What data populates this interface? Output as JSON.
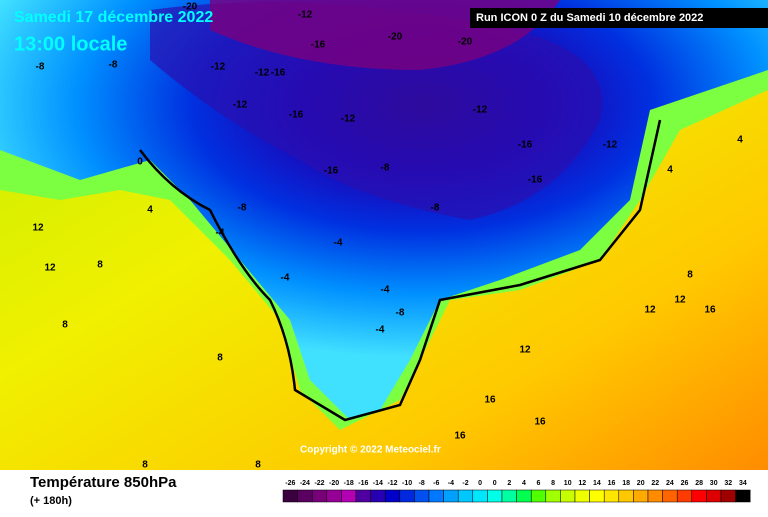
{
  "header": {
    "date": "Samedi 17 décembre 2022",
    "time": "13:00 locale",
    "run": "Run ICON 0 Z du Samedi 10 décembre 2022"
  },
  "copyright": "Copyright © 2022 Meteociel.fr",
  "footer": {
    "title": "Température 850hPa",
    "lead": "(+ 180h)"
  },
  "scale": {
    "labels": [
      "-26",
      "-24",
      "-22",
      "-20",
      "-18",
      "-16",
      "-14",
      "-12",
      "-10",
      "-8",
      "-6",
      "-4",
      "-2",
      "0",
      "0",
      "2",
      "4",
      "6",
      "8",
      "10",
      "12",
      "14",
      "16",
      "18",
      "20",
      "22",
      "24",
      "26",
      "28",
      "30",
      "32",
      "34"
    ],
    "colors": [
      "#3a0040",
      "#5a0060",
      "#780078",
      "#960096",
      "#b400b4",
      "#5000a0",
      "#2800b4",
      "#0000c8",
      "#0028dc",
      "#0050f0",
      "#0078ff",
      "#00a0ff",
      "#00c8ff",
      "#00e6ff",
      "#00ffe6",
      "#00ffa0",
      "#00ff50",
      "#50ff00",
      "#a0ff00",
      "#c8ff00",
      "#f0ff00",
      "#ffff00",
      "#ffe600",
      "#ffc800",
      "#ffaa00",
      "#ff8c00",
      "#ff6400",
      "#ff3c00",
      "#ff0000",
      "#dc0000",
      "#a00000",
      "#000000"
    ]
  },
  "map": {
    "labels": [
      "-20",
      "-12",
      "-16",
      "-20",
      "-20",
      "-8",
      "-8",
      "-12",
      "-16",
      "-12",
      "-12",
      "-16",
      "-12",
      "-16",
      "-8",
      "-8",
      "-16",
      "-12",
      "-16",
      "-8",
      "-12",
      "-4",
      "-4",
      "-4",
      "-4",
      "-8",
      "-4",
      "0",
      "4",
      "8",
      "12",
      "12",
      "8",
      "8",
      "4",
      "4",
      "8",
      "12",
      "12",
      "16",
      "12",
      "16",
      "16",
      "16",
      "8",
      "8"
    ]
  }
}
